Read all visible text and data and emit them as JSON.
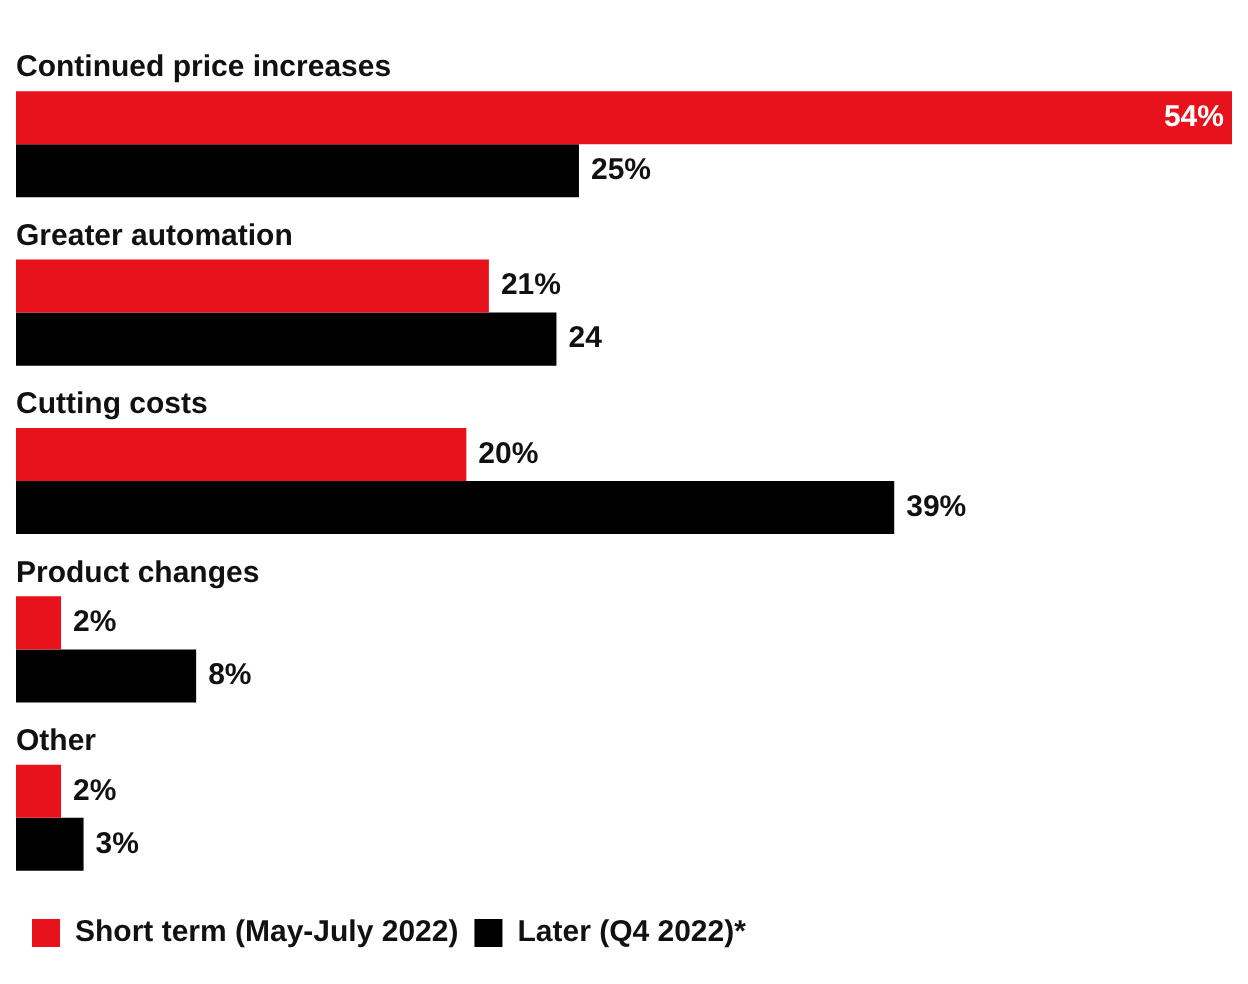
{
  "chart_data": {
    "type": "bar",
    "orientation": "horizontal",
    "categories": [
      "Continued price increases",
      "Greater automation",
      "Cutting costs",
      "Product changes",
      "Other"
    ],
    "series": [
      {
        "name": "Short term (May-July 2022)",
        "color": "#e8121c",
        "values": [
          54,
          21,
          20,
          2,
          2
        ],
        "value_labels": [
          "54%",
          "21%",
          "20%",
          "2%",
          "2%"
        ]
      },
      {
        "name": "Later (Q4 2022)*",
        "color": "#000000",
        "values": [
          25,
          24,
          39,
          8,
          3
        ],
        "value_labels": [
          "25%",
          "24",
          "39%",
          "8%",
          "3%"
        ]
      }
    ],
    "legend": "bottom left",
    "tick_labels": false
  }
}
